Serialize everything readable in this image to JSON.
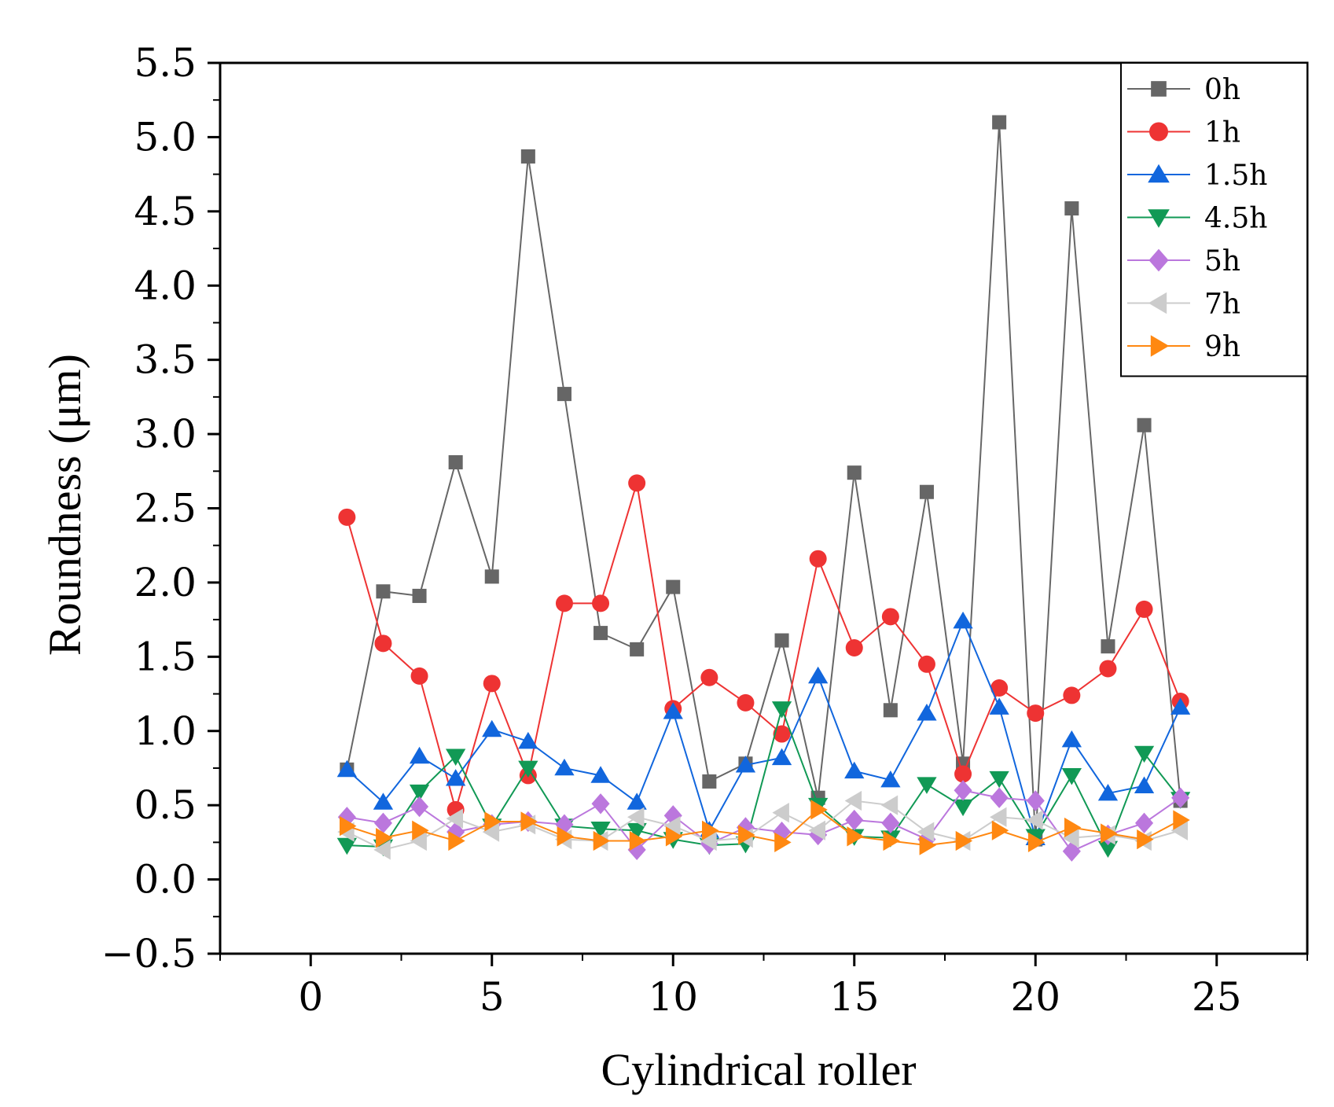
{
  "chart_data": {
    "type": "line",
    "xlabel": "Cylindrical roller",
    "ylabel": "Roundness (μm)",
    "xlim": [
      -2.5,
      27.5
    ],
    "ylim": [
      -0.5,
      5.5
    ],
    "xticks": [
      0,
      5,
      10,
      15,
      20,
      25
    ],
    "xtick_labels": [
      "0",
      "5",
      "10",
      "15",
      "20",
      "25"
    ],
    "yticks": [
      -0.5,
      0.0,
      0.5,
      1.0,
      1.5,
      2.0,
      2.5,
      3.0,
      3.5,
      4.0,
      4.5,
      5.0,
      5.5
    ],
    "ytick_labels": [
      "−0.5",
      "0.0",
      "0.5",
      "1.0",
      "1.5",
      "2.0",
      "2.5",
      "3.0",
      "3.5",
      "4.0",
      "4.5",
      "5.0",
      "5.5"
    ],
    "grid": false,
    "legend_position": "top-right",
    "x": [
      1,
      2,
      3,
      4,
      5,
      6,
      7,
      8,
      9,
      10,
      11,
      12,
      13,
      14,
      15,
      16,
      17,
      18,
      19,
      20,
      21,
      22,
      23,
      24
    ],
    "series": [
      {
        "name": "0h",
        "color": "#666666",
        "marker": "square",
        "values": [
          0.74,
          1.94,
          1.91,
          2.81,
          2.04,
          4.87,
          3.27,
          1.66,
          1.55,
          1.97,
          0.66,
          0.78,
          1.61,
          0.55,
          2.74,
          1.14,
          2.61,
          0.78,
          5.1,
          0.27,
          4.52,
          1.57,
          3.06,
          0.53
        ]
      },
      {
        "name": "1h",
        "color": "#ee3333",
        "marker": "circle",
        "values": [
          2.44,
          1.59,
          1.37,
          0.47,
          1.32,
          0.7,
          1.86,
          1.86,
          2.67,
          1.15,
          1.36,
          1.19,
          0.98,
          2.16,
          1.56,
          1.77,
          1.45,
          0.71,
          1.29,
          1.12,
          1.24,
          1.42,
          1.82,
          1.2
        ]
      },
      {
        "name": "1.5h",
        "color": "#1166dd",
        "marker": "triangle-up",
        "values": [
          0.74,
          0.52,
          0.83,
          0.68,
          1.01,
          0.93,
          0.75,
          0.7,
          0.52,
          1.13,
          0.33,
          0.77,
          0.82,
          1.37,
          0.73,
          0.67,
          1.12,
          1.74,
          1.16,
          0.28,
          0.94,
          0.58,
          0.63,
          1.16
        ]
      },
      {
        "name": "4.5h",
        "color": "#119955",
        "marker": "triangle-down",
        "values": [
          0.23,
          0.22,
          0.59,
          0.83,
          0.36,
          0.75,
          0.36,
          0.34,
          0.33,
          0.27,
          0.23,
          0.24,
          1.15,
          0.5,
          0.29,
          0.28,
          0.64,
          0.49,
          0.68,
          0.29,
          0.7,
          0.21,
          0.85,
          0.54
        ]
      },
      {
        "name": "5h",
        "color": "#bb77dd",
        "marker": "diamond",
        "values": [
          0.42,
          0.38,
          0.49,
          0.32,
          0.37,
          0.39,
          0.37,
          0.51,
          0.2,
          0.43,
          0.24,
          0.35,
          0.32,
          0.3,
          0.4,
          0.38,
          0.27,
          0.6,
          0.55,
          0.53,
          0.19,
          0.3,
          0.38,
          0.55
        ]
      },
      {
        "name": "7h",
        "color": "#cccccc",
        "marker": "triangle-left",
        "values": [
          0.32,
          0.2,
          0.26,
          0.41,
          0.32,
          0.37,
          0.27,
          0.26,
          0.42,
          0.36,
          0.26,
          0.28,
          0.45,
          0.33,
          0.53,
          0.5,
          0.32,
          0.26,
          0.42,
          0.4,
          0.28,
          0.3,
          0.26,
          0.33
        ]
      },
      {
        "name": "9h",
        "color": "#ff8811",
        "marker": "triangle-right",
        "values": [
          0.36,
          0.28,
          0.33,
          0.26,
          0.39,
          0.39,
          0.29,
          0.26,
          0.26,
          0.29,
          0.33,
          0.3,
          0.25,
          0.47,
          0.29,
          0.26,
          0.23,
          0.26,
          0.33,
          0.25,
          0.35,
          0.31,
          0.27,
          0.4
        ]
      }
    ]
  }
}
